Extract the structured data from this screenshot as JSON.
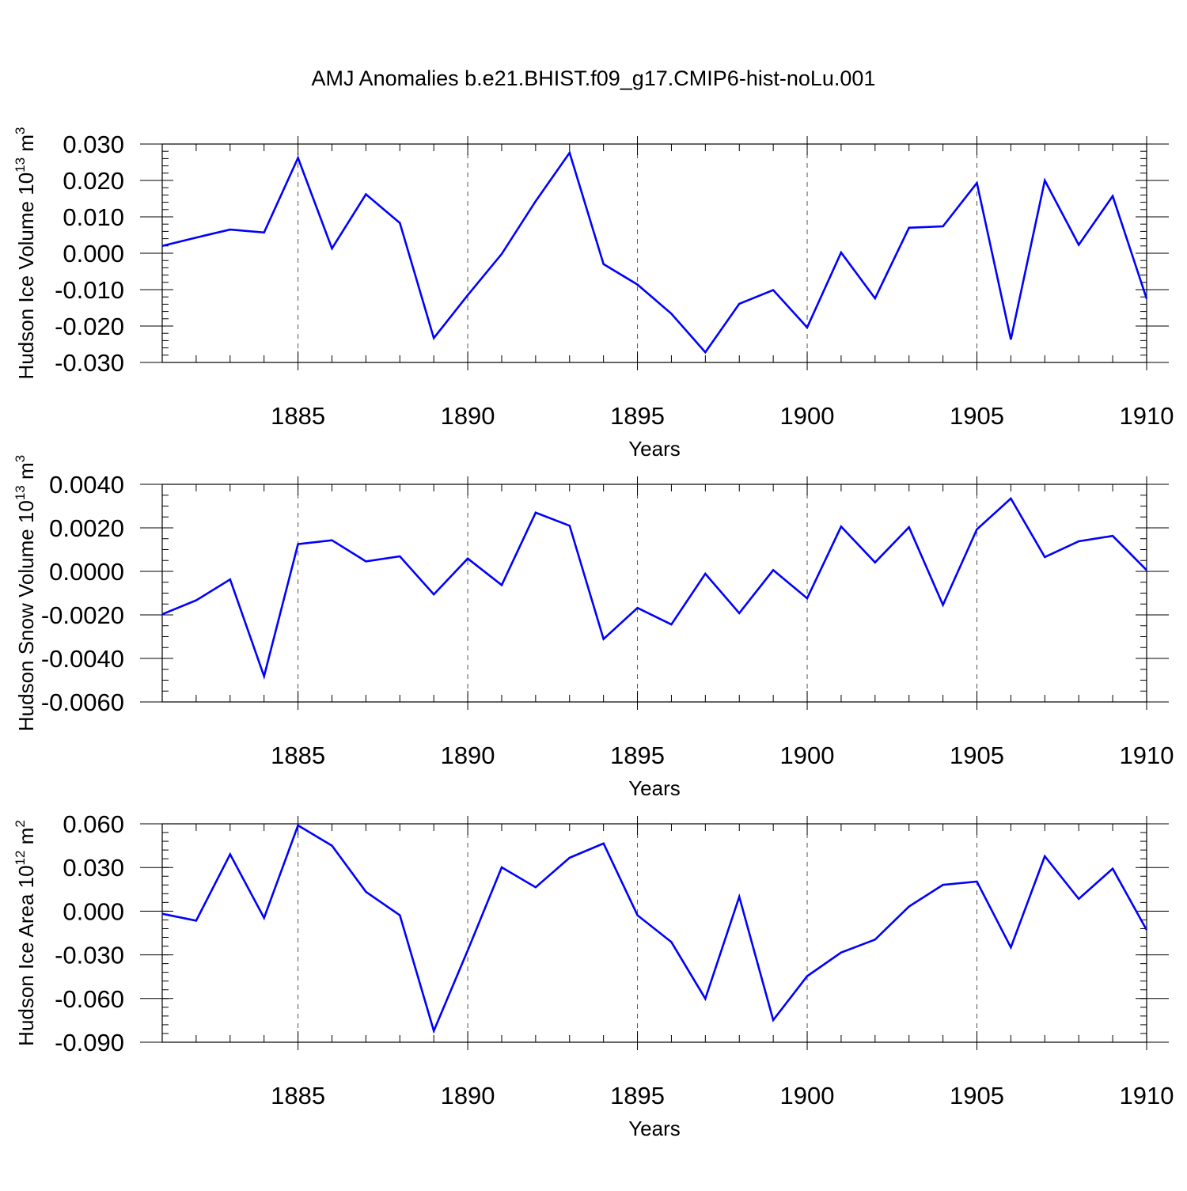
{
  "title": "AMJ Anomalies b.e21.BHIST.f09_g17.CMIP6-hist-noLu.001",
  "style": {
    "line_color": "#0000ff",
    "axis_color": "#000000",
    "grid_color": "#555555"
  },
  "chart_data": [
    {
      "type": "line",
      "ylabel_main": "Hudson Ice Volume 10",
      "ylabel_exp": "13",
      "ylabel_unit": "m",
      "ylabel_unit_exp": "3",
      "xlabel": "Years",
      "xlim": [
        1881,
        1910
      ],
      "ylim": [
        -0.03,
        0.03
      ],
      "x_ticks": [
        1885,
        1890,
        1895,
        1900,
        1905,
        1910
      ],
      "x_tick_labels": [
        "1885",
        "1890",
        "1895",
        "1900",
        "1905",
        "1910"
      ],
      "y_ticks": [
        0.03,
        0.02,
        0.01,
        0.0,
        -0.01,
        -0.02,
        -0.03
      ],
      "y_tick_labels": [
        "0.030",
        "0.020",
        "0.010",
        "0.000",
        "-0.010",
        "-0.020",
        "-0.030"
      ],
      "y_minor_step": 0.002,
      "x": [
        1881,
        1882,
        1883,
        1884,
        1885,
        1886,
        1887,
        1888,
        1889,
        1890,
        1891,
        1892,
        1893,
        1894,
        1895,
        1896,
        1897,
        1898,
        1899,
        1900,
        1901,
        1902,
        1903,
        1904,
        1905,
        1906,
        1907,
        1908,
        1909,
        1910
      ],
      "values": [
        0.002,
        0.0043,
        0.0065,
        0.0057,
        0.0262,
        0.0013,
        0.0162,
        0.0083,
        -0.0233,
        -0.0115,
        -0.0002,
        0.0143,
        0.0276,
        -0.003,
        -0.0086,
        -0.0166,
        -0.0272,
        -0.0139,
        -0.0101,
        -0.0204,
        0.0002,
        -0.0124,
        0.007,
        0.0074,
        0.0193,
        -0.0237,
        0.02,
        0.0023,
        0.0157,
        -0.0125
      ]
    },
    {
      "type": "line",
      "ylabel_main": "Hudson Snow Volume 10",
      "ylabel_exp": "13",
      "ylabel_unit": "m",
      "ylabel_unit_exp": "3",
      "xlabel": "Years",
      "xlim": [
        1881,
        1910
      ],
      "ylim": [
        -0.006,
        0.004
      ],
      "x_ticks": [
        1885,
        1890,
        1895,
        1900,
        1905,
        1910
      ],
      "x_tick_labels": [
        "1885",
        "1890",
        "1895",
        "1900",
        "1905",
        "1910"
      ],
      "y_ticks": [
        0.004,
        0.002,
        0.0,
        -0.002,
        -0.004,
        -0.006
      ],
      "y_tick_labels": [
        "0.0040",
        "0.0020",
        "0.0000",
        "-0.0020",
        "-0.0040",
        "-0.0060"
      ],
      "y_minor_step": 0.0005,
      "x": [
        1881,
        1882,
        1883,
        1884,
        1885,
        1886,
        1887,
        1888,
        1889,
        1890,
        1891,
        1892,
        1893,
        1894,
        1895,
        1896,
        1897,
        1898,
        1899,
        1900,
        1901,
        1902,
        1903,
        1904,
        1905,
        1906,
        1907,
        1908,
        1909,
        1910
      ],
      "values": [
        -0.00197,
        -0.00133,
        -0.00037,
        -0.00482,
        0.00125,
        0.00143,
        0.00046,
        0.00069,
        -0.00106,
        0.00059,
        -0.00063,
        0.0027,
        0.0021,
        -0.00311,
        -0.00168,
        -0.00244,
        -0.00011,
        -0.00192,
        6e-05,
        -0.00124,
        0.00206,
        0.00041,
        0.00203,
        -0.00154,
        0.00193,
        0.00335,
        0.00066,
        0.00138,
        0.00163,
        6e-05
      ]
    },
    {
      "type": "line",
      "ylabel_main": "Hudson Ice Area 10",
      "ylabel_exp": "12",
      "ylabel_unit": "m",
      "ylabel_unit_exp": "2",
      "xlabel": "Years",
      "xlim": [
        1881,
        1910
      ],
      "ylim": [
        -0.09,
        0.06
      ],
      "x_ticks": [
        1885,
        1890,
        1895,
        1900,
        1905,
        1910
      ],
      "x_tick_labels": [
        "1885",
        "1890",
        "1895",
        "1900",
        "1905",
        "1910"
      ],
      "y_ticks": [
        0.06,
        0.03,
        0.0,
        -0.03,
        -0.06,
        -0.09
      ],
      "y_tick_labels": [
        "0.060",
        "0.030",
        "0.000",
        "-0.030",
        "-0.060",
        "-0.090"
      ],
      "y_minor_step": 0.006,
      "x": [
        1881,
        1882,
        1883,
        1884,
        1885,
        1886,
        1887,
        1888,
        1889,
        1890,
        1891,
        1892,
        1893,
        1894,
        1895,
        1896,
        1897,
        1898,
        1899,
        1900,
        1901,
        1902,
        1903,
        1904,
        1905,
        1906,
        1907,
        1908,
        1909,
        1910
      ],
      "values": [
        -0.0018,
        -0.0065,
        0.0391,
        -0.0046,
        0.0589,
        0.045,
        0.0133,
        -0.0028,
        -0.0822,
        -0.0269,
        0.0301,
        0.0164,
        0.0367,
        0.0465,
        -0.0028,
        -0.0212,
        -0.0601,
        0.0099,
        -0.0748,
        -0.0446,
        -0.0284,
        -0.0195,
        0.0032,
        0.0181,
        0.0203,
        -0.0249,
        0.0377,
        0.0084,
        0.0292,
        -0.0129
      ]
    }
  ]
}
